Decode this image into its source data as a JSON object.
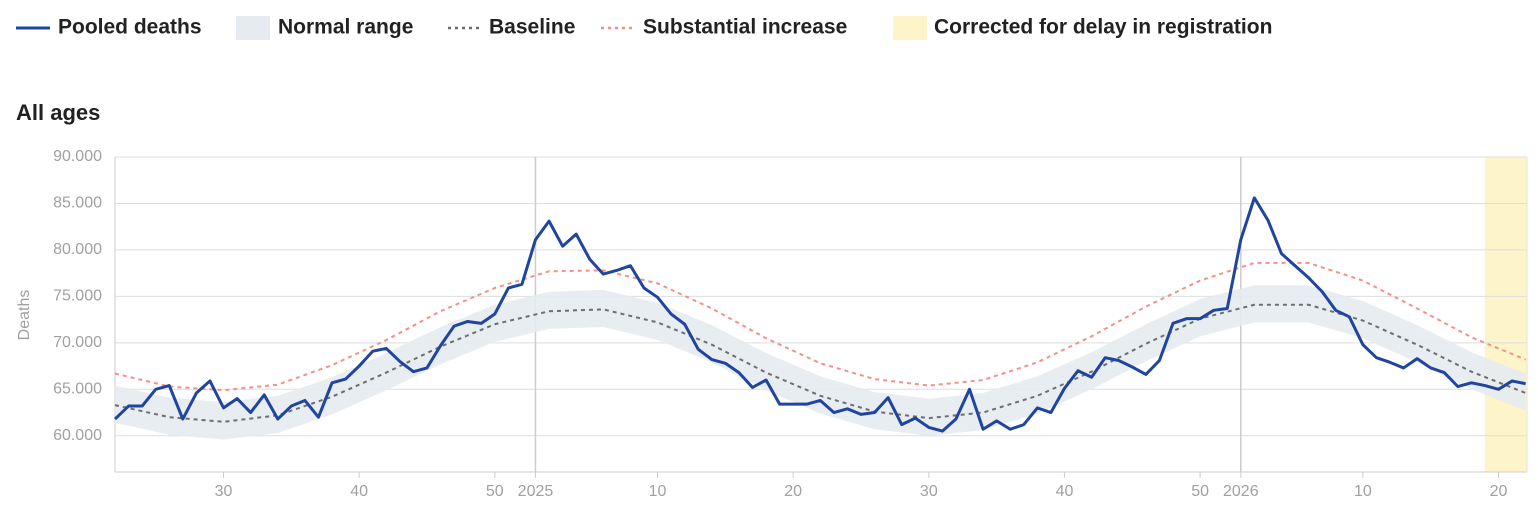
{
  "chart_data": {
    "type": "line",
    "title": "All ages",
    "y_label": "Deaths",
    "xlim": [
      22,
      126.1
    ],
    "ylim": [
      56100,
      90000
    ],
    "xticks": [
      {
        "value": 30,
        "label": "30"
      },
      {
        "value": 40,
        "label": "40"
      },
      {
        "value": 50,
        "label": "50"
      },
      {
        "value": 53,
        "label": "2025"
      },
      {
        "value": 62,
        "label": "10"
      },
      {
        "value": 72,
        "label": "20"
      },
      {
        "value": 82,
        "label": "30"
      },
      {
        "value": 92,
        "label": "40"
      },
      {
        "value": 102,
        "label": "50"
      },
      {
        "value": 105,
        "label": "2026"
      },
      {
        "value": 114,
        "label": "10"
      },
      {
        "value": 124,
        "label": "20"
      }
    ],
    "year_lines": [
      53,
      105
    ],
    "yticks": [
      {
        "value": 60000,
        "label": "60.000"
      },
      {
        "value": 65000,
        "label": "65.000"
      },
      {
        "value": 70000,
        "label": "70.000"
      },
      {
        "value": 75000,
        "label": "75.000"
      },
      {
        "value": 80000,
        "label": "80.000"
      },
      {
        "value": 85000,
        "label": "85.000"
      },
      {
        "value": 90000,
        "label": "90.000"
      }
    ],
    "grid": true,
    "highlight": {
      "name": "Corrected for delay in registration",
      "color": "#fdf5c9",
      "xlim": [
        123,
        126.1
      ]
    },
    "band": {
      "name": "Normal range",
      "color": "#e6ebf1",
      "x": [
        22,
        26,
        30,
        34,
        38,
        42,
        46,
        50,
        54,
        58,
        62,
        66,
        70,
        74,
        78,
        82,
        86,
        90,
        94,
        98,
        102,
        106,
        110,
        114,
        118,
        122,
        126
      ],
      "lower": [
        61400,
        60100,
        59600,
        60300,
        62300,
        64900,
        67700,
        70100,
        71500,
        71700,
        70300,
        67900,
        64900,
        62400,
        60700,
        60000,
        60600,
        62400,
        65000,
        68000,
        70700,
        72200,
        72200,
        70500,
        67900,
        65000,
        62700
      ],
      "upper": [
        65400,
        64100,
        63600,
        64300,
        66300,
        68900,
        71700,
        74100,
        75500,
        75700,
        74300,
        71900,
        68900,
        66400,
        64700,
        64000,
        64600,
        66400,
        69000,
        72000,
        74700,
        76200,
        76200,
        74500,
        71900,
        69000,
        66700
      ]
    },
    "series": [
      {
        "name": "Pooled deaths",
        "color": "#1f45a0",
        "dashed": false,
        "x": [
          22,
          23,
          24,
          25,
          26,
          27,
          28,
          29,
          30,
          31,
          32,
          33,
          34,
          35,
          36,
          37,
          38,
          39,
          40,
          41,
          42,
          43,
          44,
          45,
          46,
          47,
          48,
          49,
          50,
          51,
          52,
          53,
          54,
          55,
          56,
          57,
          58,
          59,
          60,
          61,
          62,
          63,
          64,
          65,
          66,
          67,
          68,
          69,
          70,
          71,
          72,
          73,
          74,
          75,
          76,
          77,
          78,
          79,
          80,
          81,
          82,
          83,
          84,
          85,
          86,
          87,
          88,
          89,
          90,
          91,
          92,
          93,
          94,
          95,
          96,
          97,
          98,
          99,
          100,
          101,
          102,
          103,
          104,
          105,
          106,
          107,
          108,
          109,
          110,
          111,
          112,
          113,
          114,
          115,
          116,
          117,
          118,
          119,
          120,
          121,
          122,
          123,
          124,
          125,
          126
        ],
        "values": [
          61800,
          63200,
          63200,
          65000,
          65400,
          61800,
          64600,
          65900,
          63000,
          64000,
          62500,
          64400,
          61800,
          63200,
          63800,
          62000,
          65700,
          66100,
          67500,
          69100,
          69400,
          68000,
          66900,
          67300,
          69700,
          71800,
          72300,
          72100,
          73100,
          75900,
          76300,
          81100,
          83100,
          80400,
          81700,
          79000,
          77400,
          77800,
          78300,
          75900,
          74900,
          73100,
          72000,
          69300,
          68200,
          67800,
          66800,
          65200,
          66000,
          63400,
          63400,
          63400,
          63800,
          62500,
          62900,
          62300,
          62500,
          64100,
          61200,
          61900,
          60900,
          60500,
          61800,
          65000,
          60700,
          61600,
          60700,
          61200,
          63000,
          62500,
          65100,
          67000,
          66300,
          68400,
          68100,
          67400,
          66600,
          68100,
          72100,
          72600,
          72600,
          73500,
          73700,
          81100,
          85600,
          83200,
          79600,
          78300,
          77000,
          75500,
          73500,
          72800,
          69800,
          68400,
          67900,
          67300,
          68300,
          67300,
          66800,
          65300,
          65700,
          65400,
          65000,
          65900,
          65600
        ]
      },
      {
        "name": "Baseline",
        "color": "#6e6e6e",
        "dashed": true,
        "x": [
          22,
          26,
          30,
          34,
          38,
          42,
          46,
          50,
          54,
          58,
          62,
          66,
          70,
          74,
          78,
          82,
          86,
          90,
          94,
          98,
          102,
          106,
          110,
          114,
          118,
          122,
          126
        ],
        "values": [
          63300,
          62000,
          61500,
          62200,
          64200,
          66800,
          69600,
          72000,
          73400,
          73600,
          72200,
          69800,
          66800,
          64300,
          62600,
          61900,
          62500,
          64300,
          66900,
          69900,
          72600,
          74100,
          74100,
          72400,
          69800,
          66900,
          64600
        ]
      },
      {
        "name": "Substantial increase",
        "color": "#f4908a",
        "dashed": true,
        "x": [
          22,
          26,
          30,
          34,
          38,
          42,
          46,
          50,
          54,
          58,
          62,
          66,
          70,
          74,
          78,
          82,
          86,
          90,
          94,
          98,
          102,
          106,
          110,
          114,
          118,
          122,
          126
        ],
        "values": [
          66700,
          65300,
          64900,
          65500,
          67600,
          70300,
          73400,
          75900,
          77700,
          77800,
          76400,
          73700,
          70500,
          67800,
          66100,
          65400,
          66000,
          67900,
          70700,
          73900,
          76700,
          78600,
          78600,
          76700,
          73700,
          70600,
          68200
        ]
      }
    ]
  }
}
